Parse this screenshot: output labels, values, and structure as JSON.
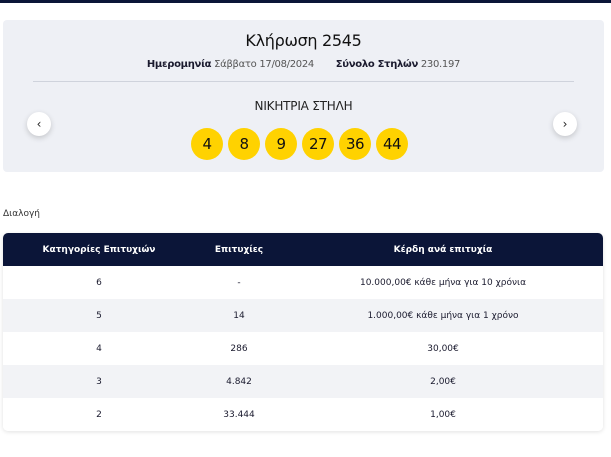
{
  "draw": {
    "title": "Κλήρωση 2545",
    "date_label": "Ημερομηνία",
    "date_value": "Σάββατο 17/08/2024",
    "columns_label": "Σύνολο Στηλών",
    "columns_value": "230.197",
    "winning_label": "ΝΙΚΗΤΡΙΑ ΣΤΗΛΗ",
    "numbers": [
      "4",
      "8",
      "9",
      "27",
      "36",
      "44"
    ],
    "ball_color": "#ffd200"
  },
  "nav": {
    "prev_symbol": "‹",
    "next_symbol": "›"
  },
  "section_label": "Διαλογή",
  "table": {
    "headers": [
      "Κατηγορίες Επιτυχιών",
      "Επιτυχίες",
      "Κέρδη ανά επιτυχία"
    ],
    "rows": [
      [
        "6",
        "-",
        "10.000,00€ κάθε μήνα για 10 χρόνια"
      ],
      [
        "5",
        "14",
        "1.000,00€ κάθε μήνα για 1 χρόνο"
      ],
      [
        "4",
        "286",
        "30,00€"
      ],
      [
        "3",
        "4.842",
        "2,00€"
      ],
      [
        "2",
        "33.444",
        "1,00€"
      ]
    ],
    "header_color": "#0b1538"
  }
}
